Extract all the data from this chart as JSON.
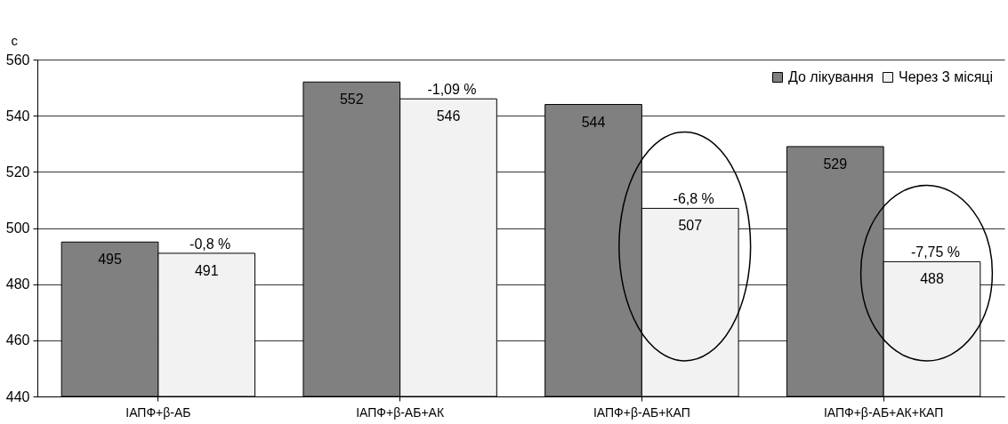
{
  "chart_data": {
    "type": "bar",
    "ylabel": "c",
    "categories": [
      "ІАПФ+β-АБ",
      "ІАПФ+β-АБ+АК",
      "ІАПФ+β-АБ+КАП",
      "ІАПФ+β-АБ+АК+КАП"
    ],
    "series": [
      {
        "name": "До лікування",
        "color": "#808080",
        "values": [
          495,
          552,
          544,
          529
        ]
      },
      {
        "name": "Через 3 місяці",
        "color": "#f2f2f2",
        "values": [
          491,
          546,
          507,
          488
        ]
      }
    ],
    "ylim": [
      440,
      560
    ],
    "yticks": [
      440,
      460,
      480,
      500,
      520,
      540,
      560
    ],
    "grid": "y",
    "legend": "top right",
    "data_labels": true,
    "annotations": [
      {
        "text": "-0,8 %",
        "x": "ІАПФ+β-АБ",
        "y": 491
      },
      {
        "text": "-1,09 %",
        "x": "ІАПФ+β-АБ+АК",
        "y": 546
      },
      {
        "text": "-6,8 %",
        "x": "ІАПФ+β-АБ+КАП",
        "y": 507
      },
      {
        "text": "-7,75 %",
        "x": "ІАПФ+β-АБ+АК+КАП",
        "y": 488
      }
    ]
  }
}
